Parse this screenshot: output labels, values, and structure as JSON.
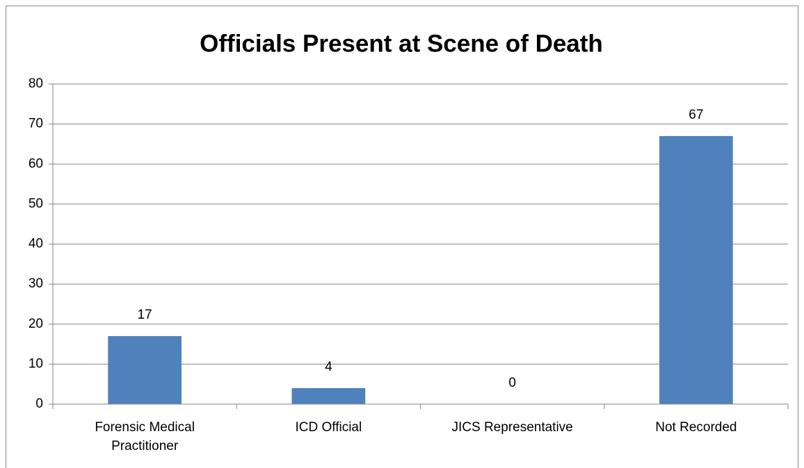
{
  "chart_data": {
    "type": "bar",
    "title": "Officials Present at Scene of Death",
    "categories": [
      "Forensic Medical Practitioner",
      "ICD Official",
      "JICS Representative",
      "Not Recorded"
    ],
    "values": [
      17,
      4,
      0,
      67
    ],
    "color": "#4f81bd",
    "ylim": [
      0,
      80
    ],
    "yticks": [
      0,
      10,
      20,
      30,
      40,
      50,
      60,
      70,
      80
    ],
    "grid": true
  }
}
